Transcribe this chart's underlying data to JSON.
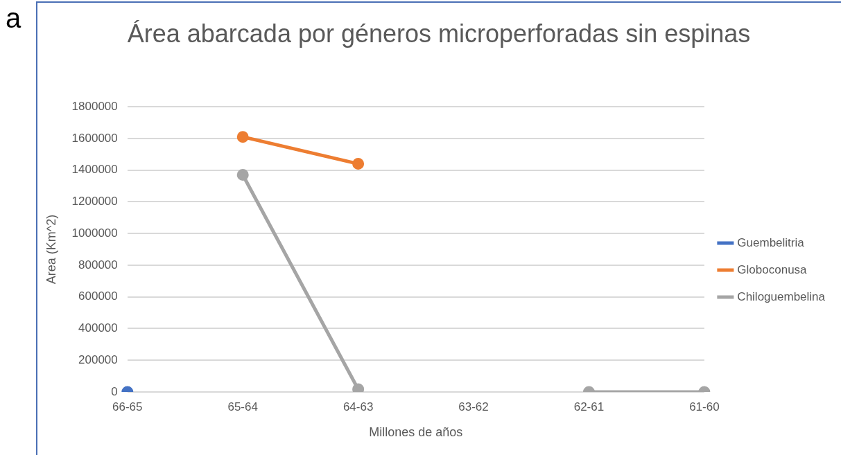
{
  "chart_data": {
    "type": "line",
    "title": "Área abarcada por géneros microperforadas sin espinas",
    "xlabel": "Millones de años",
    "ylabel": "Area (Km^2)",
    "annotations": [
      "a"
    ],
    "categories": [
      "66-65",
      "65-64",
      "64-63",
      "63-62",
      "62-61",
      "61-60"
    ],
    "series": [
      {
        "name": "Guembelitria",
        "color": "#4472c4",
        "values": [
          0,
          null,
          null,
          null,
          null,
          null
        ]
      },
      {
        "name": "Globoconusa",
        "color": "#ed7d31",
        "values": [
          null,
          1610000,
          1440000,
          null,
          null,
          null
        ]
      },
      {
        "name": "Chiloguembelina",
        "color": "#a5a5a5",
        "values": [
          null,
          1370000,
          17000,
          null,
          0,
          0
        ]
      }
    ],
    "ylim": [
      0,
      1800000
    ],
    "yticks": [
      0,
      200000,
      400000,
      600000,
      800000,
      1000000,
      1200000,
      1400000,
      1600000,
      1800000
    ],
    "grid": "y",
    "legend": "right",
    "marker": "circle",
    "line_style": "solid"
  }
}
